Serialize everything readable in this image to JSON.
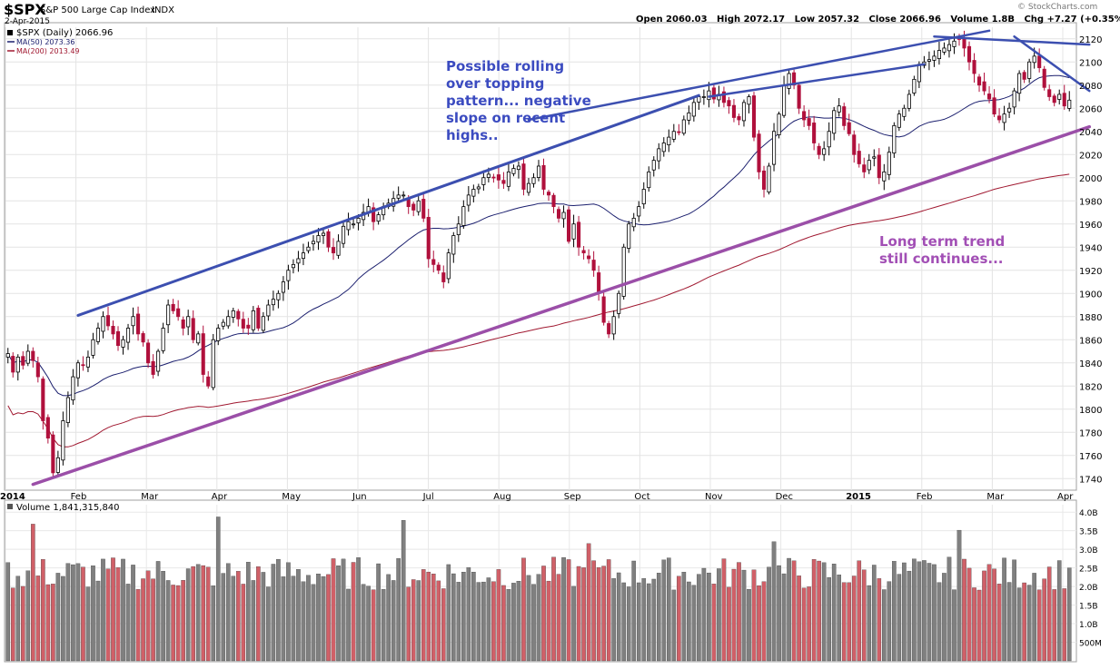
{
  "header": {
    "symbol": "$SPX",
    "name": "S&P 500 Large Cap Index",
    "exchange": "INDX",
    "date": "2-Apr-2015",
    "watermark": "© StockCharts.com",
    "quote": "Open 2060.03   High 2072.17   Low 2057.32   Close 2066.96   Volume 1.8B   Chg +7.27 (+0.35%)"
  },
  "legend": {
    "price": "$SPX (Daily) 2066.96",
    "ma50": "MA(50) 2073.36",
    "ma200": "MA(200) 2013.49",
    "volume": "Volume 1,841,315,840"
  },
  "annotations": {
    "top_line1": "Possible rolling",
    "top_line2": "over topping",
    "top_line3": "pattern... negative",
    "top_line4": "slope on recent",
    "top_line5": "highs..",
    "trend_line1": "Long term trend",
    "trend_line2": "still continues..."
  },
  "colors": {
    "up_candle": "#ffffff",
    "down_candle": "#b0103c",
    "ma50": "#1b1f6e",
    "ma200": "#a01830",
    "resistance_line": "#3c4fb0",
    "support_line": "#9b4fa8",
    "annotation_blue": "#3b4bc0",
    "annotation_purple": "#a24fb5",
    "volume_up": "#808080",
    "volume_down": "#d06068"
  },
  "chart_data": [
    {
      "type": "candlestick",
      "title": "$SPX S&P 500 Large Cap Index",
      "x_tick_labels": [
        "2014",
        "Feb",
        "Mar",
        "Apr",
        "May",
        "Jun",
        "Jul",
        "Aug",
        "Sep",
        "Oct",
        "Nov",
        "Dec",
        "2015",
        "Feb",
        "Mar",
        "Apr"
      ],
      "y_tick_labels": [
        1740,
        1760,
        1780,
        1800,
        1820,
        1840,
        1860,
        1880,
        1900,
        1920,
        1940,
        1960,
        1980,
        2000,
        2020,
        2040,
        2060,
        2080,
        2100,
        2120
      ],
      "ylim": [
        1730,
        2130
      ],
      "grid": true,
      "series": [
        {
          "name": "$SPX (Daily)",
          "approx_closes": [
            1848,
            1832,
            1845,
            1838,
            1850,
            1842,
            1828,
            1790,
            1775,
            1745,
            1758,
            1790,
            1810,
            1828,
            1840,
            1838,
            1845,
            1860,
            1870,
            1880,
            1872,
            1865,
            1855,
            1860,
            1870,
            1880,
            1865,
            1858,
            1840,
            1830,
            1850,
            1870,
            1890,
            1885,
            1880,
            1870,
            1880,
            1860,
            1865,
            1830,
            1820,
            1860,
            1870,
            1875,
            1880,
            1885,
            1878,
            1870,
            1870,
            1885,
            1870,
            1880,
            1890,
            1895,
            1900,
            1910,
            1920,
            1925,
            1930,
            1935,
            1940,
            1945,
            1950,
            1952,
            1940,
            1935,
            1945,
            1958,
            1962,
            1960,
            1965,
            1970,
            1975,
            1962,
            1968,
            1975,
            1978,
            1982,
            1985,
            1985,
            1975,
            1972,
            1980,
            1965,
            1930,
            1925,
            1920,
            1910,
            1935,
            1950,
            1960,
            1975,
            1985,
            1990,
            1992,
            2000,
            2003,
            2000,
            1998,
            1995,
            2005,
            2008,
            2010,
            1990,
            1995,
            2000,
            2010,
            1990,
            1985,
            1975,
            1965,
            1970,
            1945,
            1960,
            1940,
            1935,
            1930,
            1920,
            1900,
            1875,
            1865,
            1880,
            1900,
            1940,
            1960,
            1965,
            1975,
            1990,
            2005,
            2015,
            2025,
            2030,
            2035,
            2040,
            2039,
            2050,
            2056,
            2065,
            2070,
            2070,
            2075,
            2068,
            2072,
            2065,
            2062,
            2052,
            2050,
            2065,
            2070,
            2035,
            2005,
            1990,
            2010,
            2040,
            2055,
            2080,
            2090,
            2080,
            2060,
            2050,
            2045,
            2030,
            2020,
            2025,
            2040,
            2058,
            2062,
            2045,
            2038,
            2020,
            2012,
            2005,
            2015,
            2018,
            2000,
            2005,
            2022,
            2045,
            2055,
            2060,
            2072,
            2085,
            2098,
            2100,
            2102,
            2105,
            2110,
            2112,
            2115,
            2118,
            2120,
            2112,
            2100,
            2090,
            2080,
            2075,
            2068,
            2055,
            2050,
            2055,
            2060,
            2075,
            2090,
            2085,
            2100,
            2105,
            2095,
            2078,
            2070,
            2065,
            2072,
            2062,
            2067
          ]
        },
        {
          "name": "MA(50)",
          "value": 2073.36
        },
        {
          "name": "MA(200)",
          "value": 2013.49
        }
      ]
    },
    {
      "type": "bar",
      "title": "Volume",
      "y_tick_labels": [
        "500M",
        "1.0B",
        "1.5B",
        "2.0B",
        "2.5B",
        "3.0B",
        "3.5B",
        "4.0B"
      ],
      "ylim": [
        0,
        4.2
      ],
      "series": [
        {
          "name": "Volume",
          "last_value": "1,841,315,840"
        }
      ]
    }
  ]
}
